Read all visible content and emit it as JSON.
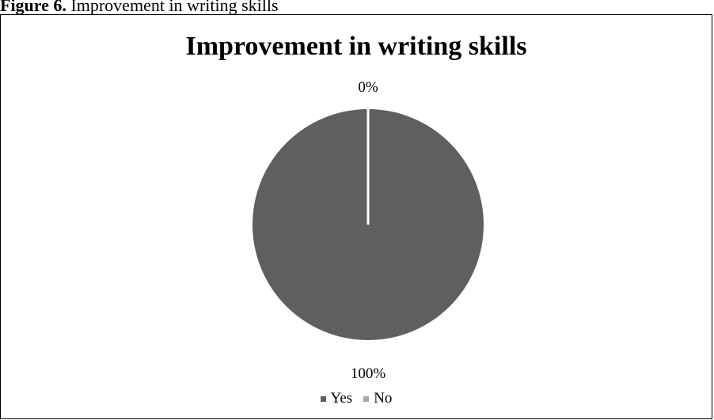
{
  "caption": {
    "label": "Figure 6.",
    "text": "Improvement in writing skills"
  },
  "chart_data": {
    "type": "pie",
    "title": "Improvement in writing skills",
    "categories": [
      "Yes",
      "No"
    ],
    "values": [
      100,
      0
    ],
    "data_labels": [
      "100%",
      "0%"
    ],
    "colors": [
      "#5f5f5f",
      "#a6a6a6"
    ],
    "slice_border_color": "#ffffff",
    "legend_position": "bottom"
  }
}
